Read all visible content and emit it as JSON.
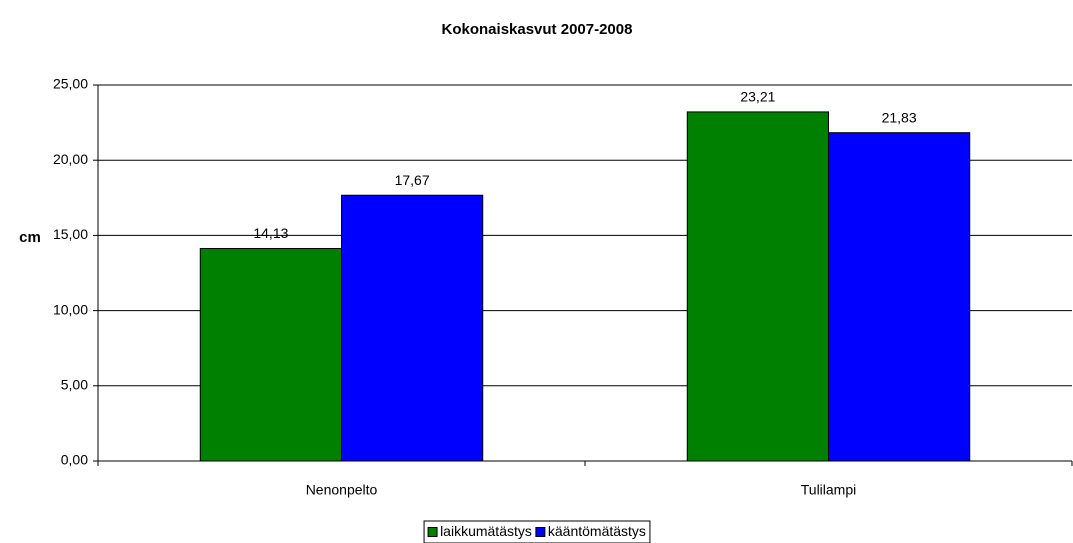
{
  "chart_data": {
    "type": "bar",
    "title": "Kokonaiskasvut 2007-2008",
    "y_label": "cm",
    "categories": [
      "Nenonpelto",
      "Tulilampi"
    ],
    "series": [
      {
        "name": "laikkumätästys",
        "color": "#008000",
        "values": [
          14.13,
          23.21
        ],
        "value_labels": [
          "14,13",
          "23,21"
        ]
      },
      {
        "name": "kääntömätästys",
        "color": "#0000ff",
        "values": [
          17.67,
          21.83
        ],
        "value_labels": [
          "17,67",
          "21,83"
        ]
      }
    ],
    "ylim": [
      0,
      25
    ],
    "yticks": [
      {
        "value": 0,
        "label": "0,00"
      },
      {
        "value": 5,
        "label": "5,00"
      },
      {
        "value": 10,
        "label": "10,00"
      },
      {
        "value": 15,
        "label": "15,00"
      },
      {
        "value": 20,
        "label": "20,00"
      },
      {
        "value": 25,
        "label": "25,00"
      }
    ],
    "grid": true,
    "legend": "bottom"
  }
}
